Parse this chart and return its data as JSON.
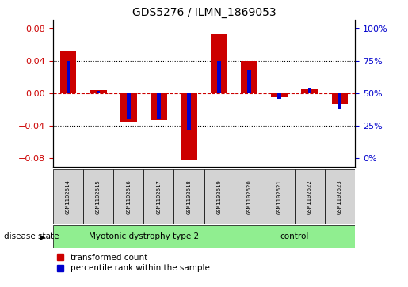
{
  "title": "GDS5276 / ILMN_1869053",
  "samples": [
    "GSM1102614",
    "GSM1102615",
    "GSM1102616",
    "GSM1102617",
    "GSM1102618",
    "GSM1102619",
    "GSM1102620",
    "GSM1102621",
    "GSM1102622",
    "GSM1102623"
  ],
  "red_values": [
    0.052,
    0.004,
    -0.035,
    -0.033,
    -0.082,
    0.073,
    0.04,
    -0.005,
    0.005,
    -0.013
  ],
  "blue_values_pct": [
    75,
    52,
    30,
    30,
    22,
    75,
    68,
    46,
    54,
    38
  ],
  "groups": [
    {
      "label": "Myotonic dystrophy type 2",
      "start": 0,
      "end": 6,
      "color": "#90ee90"
    },
    {
      "label": "control",
      "start": 6,
      "end": 10,
      "color": "#90ee90"
    }
  ],
  "ylim": [
    -0.09,
    0.09
  ],
  "yticks_left": [
    -0.08,
    -0.04,
    0.0,
    0.04,
    0.08
  ],
  "yticks_right": [
    0,
    25,
    50,
    75,
    100
  ],
  "left_color": "#cc0000",
  "right_color": "#0000cc",
  "red_bar_width": 0.55,
  "blue_bar_width": 0.12,
  "background_color": "#ffffff",
  "plot_bg": "#ffffff",
  "disease_state_label": "disease state"
}
